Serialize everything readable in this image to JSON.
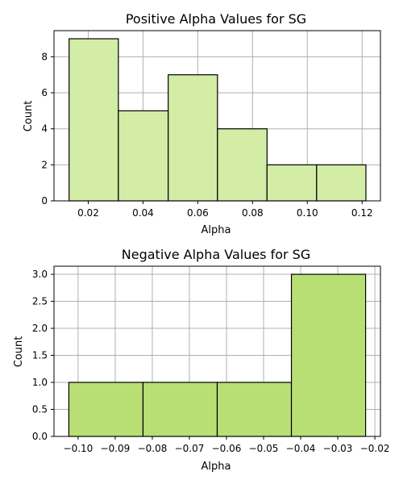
{
  "chart_data": [
    {
      "type": "bar",
      "title": "Positive Alpha Values for SG",
      "xlabel": "Alpha",
      "ylabel": "Count",
      "bins": [
        {
          "x0": 0.013,
          "x1": 0.031,
          "count": 9
        },
        {
          "x0": 0.031,
          "x1": 0.0492,
          "count": 5
        },
        {
          "x0": 0.0492,
          "x1": 0.0672,
          "count": 7
        },
        {
          "x0": 0.0672,
          "x1": 0.0853,
          "count": 4
        },
        {
          "x0": 0.0853,
          "x1": 0.1034,
          "count": 2
        },
        {
          "x0": 0.1034,
          "x1": 0.1214,
          "count": 2
        }
      ],
      "xlim": [
        0.0075,
        0.1267
      ],
      "ylim": [
        0,
        9.45
      ],
      "xticks": [
        0.02,
        0.04,
        0.06,
        0.08,
        0.1,
        0.12
      ],
      "xtick_labels": [
        "0.02",
        "0.04",
        "0.06",
        "0.08",
        "0.10",
        "0.12"
      ],
      "yticks": [
        0,
        2,
        4,
        6,
        8
      ],
      "ytick_labels": [
        "0",
        "2",
        "4",
        "6",
        "8"
      ],
      "grid": true,
      "bar_color": "#d3eca6",
      "edge_color": "#000000"
    },
    {
      "type": "bar",
      "title": "Negative Alpha Values for SG",
      "xlabel": "Alpha",
      "ylabel": "Count",
      "bins": [
        {
          "x0": -0.1025,
          "x1": -0.0825,
          "count": 1
        },
        {
          "x0": -0.0825,
          "x1": -0.0625,
          "count": 1
        },
        {
          "x0": -0.0625,
          "x1": -0.0425,
          "count": 1
        },
        {
          "x0": -0.0425,
          "x1": -0.0225,
          "count": 3
        }
      ],
      "xlim": [
        -0.1065,
        -0.0185
      ],
      "ylim": [
        0,
        3.15
      ],
      "xticks": [
        -0.1,
        -0.09,
        -0.08,
        -0.07,
        -0.06,
        -0.05,
        -0.04,
        -0.03,
        -0.02
      ],
      "xtick_labels": [
        "−0.10",
        "−0.09",
        "−0.08",
        "−0.07",
        "−0.06",
        "−0.05",
        "−0.04",
        "−0.03",
        "−0.02"
      ],
      "yticks": [
        0,
        0.5,
        1.0,
        1.5,
        2.0,
        2.5,
        3.0
      ],
      "ytick_labels": [
        "0.0",
        "0.5",
        "1.0",
        "1.5",
        "2.0",
        "2.5",
        "3.0"
      ],
      "grid": true,
      "bar_color": "#b8df74",
      "edge_color": "#000000"
    }
  ]
}
